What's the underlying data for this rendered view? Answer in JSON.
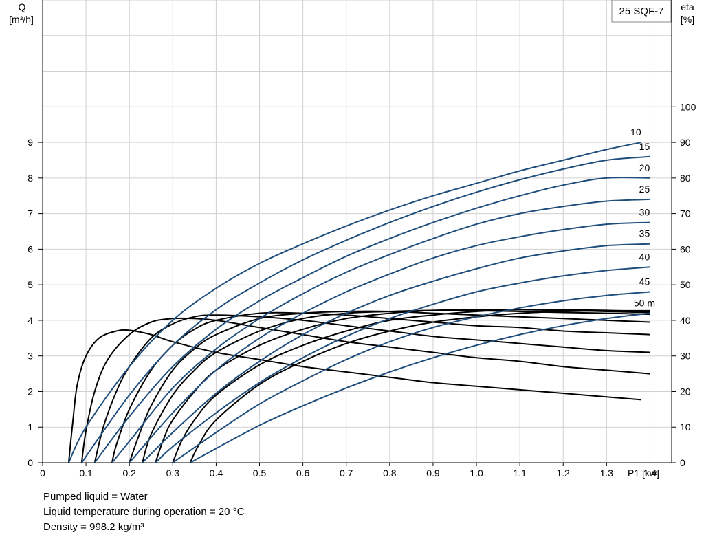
{
  "chart_data": {
    "type": "line",
    "title": "25 SQF-7",
    "xlabel": "P1 [kw]",
    "ylabel_left": {
      "symbol": "Q",
      "unit": "[m³/h]"
    },
    "ylabel_right": {
      "symbol": "eta",
      "unit": "[%]"
    },
    "xlim": [
      0,
      1.45
    ],
    "ylim_left": [
      0,
      13
    ],
    "ylim_right": [
      0,
      130
    ],
    "x_ticks": [
      0,
      0.1,
      0.2,
      0.3,
      0.4,
      0.5,
      0.6,
      0.7,
      0.8,
      0.9,
      1.0,
      1.1,
      1.2,
      1.3,
      1.4
    ],
    "x_tick_labels": [
      "0",
      "0.1",
      "0.2",
      "0.3",
      "0.4",
      "0.5",
      "0.6",
      "0.7",
      "0.8",
      "0.9",
      "1.0",
      "1.1",
      "1.2",
      "1.3",
      "1.4"
    ],
    "y_left_ticks": [
      0,
      1,
      2,
      3,
      4,
      5,
      6,
      7,
      8,
      9
    ],
    "y_right_ticks": [
      0,
      10,
      20,
      30,
      40,
      50,
      60,
      70,
      80,
      90,
      100
    ],
    "grid": true,
    "head_unit": "m",
    "flow_series": [
      {
        "name": "10",
        "points": [
          [
            0.06,
            0
          ],
          [
            0.1,
            1.0
          ],
          [
            0.2,
            2.7
          ],
          [
            0.3,
            4.0
          ],
          [
            0.4,
            4.9
          ],
          [
            0.5,
            5.6
          ],
          [
            0.6,
            6.15
          ],
          [
            0.7,
            6.65
          ],
          [
            0.8,
            7.1
          ],
          [
            0.9,
            7.5
          ],
          [
            1.0,
            7.85
          ],
          [
            1.1,
            8.2
          ],
          [
            1.2,
            8.5
          ],
          [
            1.3,
            8.8
          ],
          [
            1.38,
            9.0
          ]
        ]
      },
      {
        "name": "15",
        "points": [
          [
            0.09,
            0
          ],
          [
            0.2,
            1.9
          ],
          [
            0.3,
            3.3
          ],
          [
            0.4,
            4.3
          ],
          [
            0.5,
            5.05
          ],
          [
            0.6,
            5.7
          ],
          [
            0.7,
            6.25
          ],
          [
            0.8,
            6.75
          ],
          [
            0.9,
            7.2
          ],
          [
            1.0,
            7.6
          ],
          [
            1.1,
            7.95
          ],
          [
            1.2,
            8.25
          ],
          [
            1.3,
            8.5
          ],
          [
            1.4,
            8.6
          ]
        ]
      },
      {
        "name": "20",
        "points": [
          [
            0.12,
            0
          ],
          [
            0.2,
            1.3
          ],
          [
            0.3,
            2.7
          ],
          [
            0.4,
            3.75
          ],
          [
            0.5,
            4.55
          ],
          [
            0.6,
            5.2
          ],
          [
            0.7,
            5.8
          ],
          [
            0.8,
            6.3
          ],
          [
            0.9,
            6.75
          ],
          [
            1.0,
            7.15
          ],
          [
            1.1,
            7.5
          ],
          [
            1.2,
            7.8
          ],
          [
            1.3,
            8.0
          ],
          [
            1.4,
            8.0
          ]
        ]
      },
      {
        "name": "25",
        "points": [
          [
            0.16,
            0
          ],
          [
            0.2,
            0.6
          ],
          [
            0.3,
            2.1
          ],
          [
            0.4,
            3.2
          ],
          [
            0.5,
            4.05
          ],
          [
            0.6,
            4.75
          ],
          [
            0.7,
            5.35
          ],
          [
            0.8,
            5.85
          ],
          [
            0.9,
            6.3
          ],
          [
            1.0,
            6.7
          ],
          [
            1.1,
            7.0
          ],
          [
            1.2,
            7.2
          ],
          [
            1.3,
            7.35
          ],
          [
            1.4,
            7.4
          ]
        ]
      },
      {
        "name": "30",
        "points": [
          [
            0.2,
            0
          ],
          [
            0.3,
            1.4
          ],
          [
            0.4,
            2.6
          ],
          [
            0.5,
            3.5
          ],
          [
            0.6,
            4.2
          ],
          [
            0.7,
            4.8
          ],
          [
            0.8,
            5.3
          ],
          [
            0.9,
            5.75
          ],
          [
            1.0,
            6.1
          ],
          [
            1.1,
            6.35
          ],
          [
            1.2,
            6.55
          ],
          [
            1.3,
            6.7
          ],
          [
            1.4,
            6.75
          ]
        ]
      },
      {
        "name": "35",
        "points": [
          [
            0.23,
            0
          ],
          [
            0.3,
            0.85
          ],
          [
            0.4,
            1.95
          ],
          [
            0.5,
            2.85
          ],
          [
            0.6,
            3.6
          ],
          [
            0.7,
            4.2
          ],
          [
            0.8,
            4.7
          ],
          [
            0.9,
            5.1
          ],
          [
            1.0,
            5.45
          ],
          [
            1.1,
            5.75
          ],
          [
            1.2,
            5.95
          ],
          [
            1.3,
            6.1
          ],
          [
            1.4,
            6.15
          ]
        ]
      },
      {
        "name": "40",
        "points": [
          [
            0.26,
            0
          ],
          [
            0.3,
            0.45
          ],
          [
            0.4,
            1.4
          ],
          [
            0.5,
            2.25
          ],
          [
            0.6,
            2.95
          ],
          [
            0.7,
            3.55
          ],
          [
            0.8,
            4.05
          ],
          [
            0.9,
            4.45
          ],
          [
            1.0,
            4.8
          ],
          [
            1.1,
            5.05
          ],
          [
            1.2,
            5.25
          ],
          [
            1.3,
            5.4
          ],
          [
            1.4,
            5.5
          ]
        ]
      },
      {
        "name": "45",
        "points": [
          [
            0.3,
            0
          ],
          [
            0.4,
            0.85
          ],
          [
            0.5,
            1.65
          ],
          [
            0.6,
            2.3
          ],
          [
            0.7,
            2.9
          ],
          [
            0.8,
            3.4
          ],
          [
            0.9,
            3.8
          ],
          [
            1.0,
            4.1
          ],
          [
            1.1,
            4.35
          ],
          [
            1.2,
            4.55
          ],
          [
            1.3,
            4.7
          ],
          [
            1.4,
            4.8
          ]
        ]
      },
      {
        "name": "50",
        "points": [
          [
            0.34,
            0
          ],
          [
            0.4,
            0.4
          ],
          [
            0.5,
            1.05
          ],
          [
            0.6,
            1.6
          ],
          [
            0.7,
            2.1
          ],
          [
            0.8,
            2.55
          ],
          [
            0.9,
            2.95
          ],
          [
            1.0,
            3.3
          ],
          [
            1.1,
            3.6
          ],
          [
            1.2,
            3.85
          ],
          [
            1.3,
            4.05
          ],
          [
            1.4,
            4.2
          ]
        ]
      }
    ],
    "efficiency_series": [
      {
        "points": [
          [
            0.06,
            0
          ],
          [
            0.07,
            12
          ],
          [
            0.08,
            22
          ],
          [
            0.1,
            30
          ],
          [
            0.13,
            35
          ],
          [
            0.17,
            37
          ],
          [
            0.2,
            37.2
          ],
          [
            0.25,
            36
          ],
          [
            0.3,
            34
          ],
          [
            0.4,
            31
          ],
          [
            0.5,
            29
          ],
          [
            0.6,
            27
          ],
          [
            0.7,
            25.5
          ],
          [
            0.8,
            24
          ],
          [
            0.9,
            22.5
          ],
          [
            1.0,
            21.5
          ],
          [
            1.1,
            20.5
          ],
          [
            1.2,
            19.5
          ],
          [
            1.3,
            18.5
          ],
          [
            1.38,
            17.7
          ]
        ]
      },
      {
        "points": [
          [
            0.09,
            0
          ],
          [
            0.1,
            9
          ],
          [
            0.12,
            20
          ],
          [
            0.15,
            29
          ],
          [
            0.2,
            36
          ],
          [
            0.25,
            39.5
          ],
          [
            0.3,
            40.5
          ],
          [
            0.35,
            40.5
          ],
          [
            0.4,
            40
          ],
          [
            0.5,
            38
          ],
          [
            0.6,
            36
          ],
          [
            0.7,
            34
          ],
          [
            0.8,
            32.5
          ],
          [
            0.9,
            31
          ],
          [
            1.0,
            29.5
          ],
          [
            1.1,
            28.5
          ],
          [
            1.2,
            27
          ],
          [
            1.3,
            26
          ],
          [
            1.4,
            25
          ]
        ]
      },
      {
        "points": [
          [
            0.12,
            0
          ],
          [
            0.14,
            10
          ],
          [
            0.17,
            20
          ],
          [
            0.2,
            27
          ],
          [
            0.25,
            35
          ],
          [
            0.3,
            39
          ],
          [
            0.35,
            41
          ],
          [
            0.4,
            41.5
          ],
          [
            0.5,
            41
          ],
          [
            0.6,
            40
          ],
          [
            0.7,
            38.5
          ],
          [
            0.8,
            37
          ],
          [
            0.9,
            35.5
          ],
          [
            1.0,
            34.5
          ],
          [
            1.1,
            33.5
          ],
          [
            1.2,
            32.5
          ],
          [
            1.3,
            31.5
          ],
          [
            1.4,
            31
          ]
        ]
      },
      {
        "points": [
          [
            0.16,
            0
          ],
          [
            0.17,
            5
          ],
          [
            0.2,
            15
          ],
          [
            0.25,
            26
          ],
          [
            0.3,
            33
          ],
          [
            0.35,
            37.5
          ],
          [
            0.4,
            40
          ],
          [
            0.5,
            42
          ],
          [
            0.6,
            42
          ],
          [
            0.7,
            41.5
          ],
          [
            0.8,
            40.5
          ],
          [
            0.9,
            39.5
          ],
          [
            1.0,
            38.5
          ],
          [
            1.1,
            38
          ],
          [
            1.2,
            37
          ],
          [
            1.3,
            36.5
          ],
          [
            1.4,
            36
          ]
        ]
      },
      {
        "points": [
          [
            0.2,
            0
          ],
          [
            0.22,
            7
          ],
          [
            0.25,
            16
          ],
          [
            0.3,
            26
          ],
          [
            0.35,
            32
          ],
          [
            0.4,
            36
          ],
          [
            0.5,
            40.5
          ],
          [
            0.6,
            42
          ],
          [
            0.7,
            42.5
          ],
          [
            0.8,
            42.5
          ],
          [
            0.9,
            42
          ],
          [
            1.0,
            41.5
          ],
          [
            1.1,
            41
          ],
          [
            1.2,
            40.5
          ],
          [
            1.3,
            40
          ],
          [
            1.4,
            39.5
          ]
        ]
      },
      {
        "points": [
          [
            0.23,
            0
          ],
          [
            0.25,
            8
          ],
          [
            0.3,
            19
          ],
          [
            0.35,
            26
          ],
          [
            0.4,
            31
          ],
          [
            0.5,
            37
          ],
          [
            0.6,
            40.5
          ],
          [
            0.7,
            42
          ],
          [
            0.8,
            42.5
          ],
          [
            0.9,
            42.8
          ],
          [
            1.0,
            42.7
          ],
          [
            1.1,
            42.5
          ],
          [
            1.2,
            42.2
          ],
          [
            1.3,
            42
          ],
          [
            1.4,
            41.7
          ]
        ]
      },
      {
        "points": [
          [
            0.26,
            0
          ],
          [
            0.28,
            7
          ],
          [
            0.3,
            12
          ],
          [
            0.35,
            20
          ],
          [
            0.4,
            26
          ],
          [
            0.5,
            33
          ],
          [
            0.6,
            37.5
          ],
          [
            0.7,
            40.5
          ],
          [
            0.8,
            42
          ],
          [
            0.9,
            42.8
          ],
          [
            1.0,
            43
          ],
          [
            1.1,
            43
          ],
          [
            1.2,
            42.8
          ],
          [
            1.3,
            42.5
          ],
          [
            1.4,
            42.2
          ]
        ]
      },
      {
        "points": [
          [
            0.3,
            0
          ],
          [
            0.32,
            6
          ],
          [
            0.35,
            12
          ],
          [
            0.4,
            19
          ],
          [
            0.5,
            27.5
          ],
          [
            0.6,
            33
          ],
          [
            0.7,
            37
          ],
          [
            0.8,
            40
          ],
          [
            0.9,
            41.5
          ],
          [
            1.0,
            42.5
          ],
          [
            1.1,
            43
          ],
          [
            1.2,
            43
          ],
          [
            1.3,
            42.8
          ],
          [
            1.4,
            42.5
          ]
        ]
      },
      {
        "points": [
          [
            0.34,
            0
          ],
          [
            0.36,
            5
          ],
          [
            0.4,
            12
          ],
          [
            0.5,
            22
          ],
          [
            0.6,
            28.5
          ],
          [
            0.7,
            33.5
          ],
          [
            0.8,
            37
          ],
          [
            0.9,
            39.5
          ],
          [
            1.0,
            41
          ],
          [
            1.1,
            42
          ],
          [
            1.2,
            42.5
          ],
          [
            1.3,
            42.7
          ],
          [
            1.4,
            42.7
          ]
        ]
      }
    ],
    "notes": [
      "Pumped liquid = Water",
      "Liquid temperature during operation = 20 °C",
      "Density = 998.2 kg/m³"
    ]
  }
}
